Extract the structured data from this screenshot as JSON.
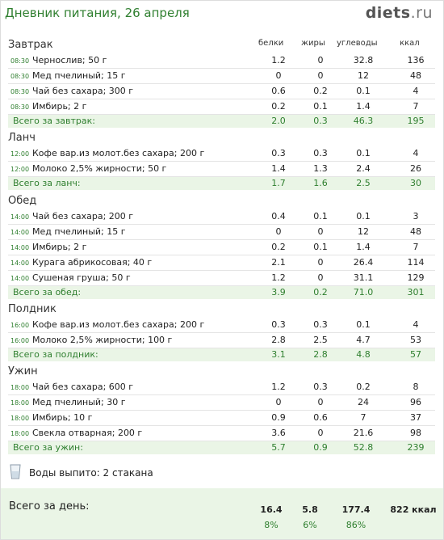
{
  "header": {
    "title": "Дневник питания, 26 апреля",
    "logo_main": "diets",
    "logo_suffix": ".ru"
  },
  "columns": {
    "protein": "белки",
    "fat": "жиры",
    "carbs": "углеводы",
    "kcal": "ккал"
  },
  "meals": [
    {
      "name": "Завтрак",
      "items": [
        {
          "time": "08:30",
          "food": "Чернослив; 50 г",
          "protein": "1.2",
          "fat": "0",
          "carbs": "32.8",
          "kcal": "136"
        },
        {
          "time": "08:30",
          "food": "Мед пчелиный; 15 г",
          "protein": "0",
          "fat": "0",
          "carbs": "12",
          "kcal": "48"
        },
        {
          "time": "08:30",
          "food": "Чай без сахара; 300 г",
          "protein": "0.6",
          "fat": "0.2",
          "carbs": "0.1",
          "kcal": "4"
        },
        {
          "time": "08:30",
          "food": "Имбирь; 2 г",
          "protein": "0.2",
          "fat": "0.1",
          "carbs": "1.4",
          "kcal": "7"
        }
      ],
      "total": {
        "label": "Всего за завтрак:",
        "protein": "2.0",
        "fat": "0.3",
        "carbs": "46.3",
        "kcal": "195"
      }
    },
    {
      "name": "Ланч",
      "items": [
        {
          "time": "12:00",
          "food": "Кофе вар.из молот.без сахара; 200 г",
          "protein": "0.3",
          "fat": "0.3",
          "carbs": "0.1",
          "kcal": "4"
        },
        {
          "time": "12:00",
          "food": "Молоко 2,5% жирности; 50 г",
          "protein": "1.4",
          "fat": "1.3",
          "carbs": "2.4",
          "kcal": "26"
        }
      ],
      "total": {
        "label": "Всего за ланч:",
        "protein": "1.7",
        "fat": "1.6",
        "carbs": "2.5",
        "kcal": "30"
      }
    },
    {
      "name": "Обед",
      "items": [
        {
          "time": "14:00",
          "food": "Чай без сахара; 200 г",
          "protein": "0.4",
          "fat": "0.1",
          "carbs": "0.1",
          "kcal": "3"
        },
        {
          "time": "14:00",
          "food": "Мед пчелиный; 15 г",
          "protein": "0",
          "fat": "0",
          "carbs": "12",
          "kcal": "48"
        },
        {
          "time": "14:00",
          "food": "Имбирь; 2 г",
          "protein": "0.2",
          "fat": "0.1",
          "carbs": "1.4",
          "kcal": "7"
        },
        {
          "time": "14:00",
          "food": "Курага абрикосовая; 40 г",
          "protein": "2.1",
          "fat": "0",
          "carbs": "26.4",
          "kcal": "114"
        },
        {
          "time": "14:00",
          "food": "Сушеная груша; 50 г",
          "protein": "1.2",
          "fat": "0",
          "carbs": "31.1",
          "kcal": "129"
        }
      ],
      "total": {
        "label": "Всего за обед:",
        "protein": "3.9",
        "fat": "0.2",
        "carbs": "71.0",
        "kcal": "301"
      }
    },
    {
      "name": "Полдник",
      "items": [
        {
          "time": "16:00",
          "food": "Кофе вар.из молот.без сахара; 200 г",
          "protein": "0.3",
          "fat": "0.3",
          "carbs": "0.1",
          "kcal": "4"
        },
        {
          "time": "16:00",
          "food": "Молоко 2,5% жирности; 100 г",
          "protein": "2.8",
          "fat": "2.5",
          "carbs": "4.7",
          "kcal": "53"
        }
      ],
      "total": {
        "label": "Всего за полдник:",
        "protein": "3.1",
        "fat": "2.8",
        "carbs": "4.8",
        "kcal": "57"
      }
    },
    {
      "name": "Ужин",
      "items": [
        {
          "time": "18:00",
          "food": "Чай без сахара; 600 г",
          "protein": "1.2",
          "fat": "0.3",
          "carbs": "0.2",
          "kcal": "8"
        },
        {
          "time": "18:00",
          "food": "Мед пчелиный; 30 г",
          "protein": "0",
          "fat": "0",
          "carbs": "24",
          "kcal": "96"
        },
        {
          "time": "18:00",
          "food": "Имбирь; 10 г",
          "protein": "0.9",
          "fat": "0.6",
          "carbs": "7",
          "kcal": "37"
        },
        {
          "time": "18:00",
          "food": "Свекла отварная; 200 г",
          "protein": "3.6",
          "fat": "0",
          "carbs": "21.6",
          "kcal": "98"
        }
      ],
      "total": {
        "label": "Всего за ужин:",
        "protein": "5.7",
        "fat": "0.9",
        "carbs": "52.8",
        "kcal": "239"
      }
    }
  ],
  "water": {
    "icon": "glass-icon",
    "text": "Воды выпито: 2 стакана"
  },
  "day_total": {
    "label": "Всего за день:",
    "protein": "16.4",
    "fat": "5.8",
    "carbs": "177.4",
    "kcal": "822 ккал",
    "protein_pct": "8%",
    "fat_pct": "6%",
    "carbs_pct": "86%"
  },
  "colors": {
    "accent": "#2f7f2f",
    "total_bg": "#eaf5e6"
  }
}
